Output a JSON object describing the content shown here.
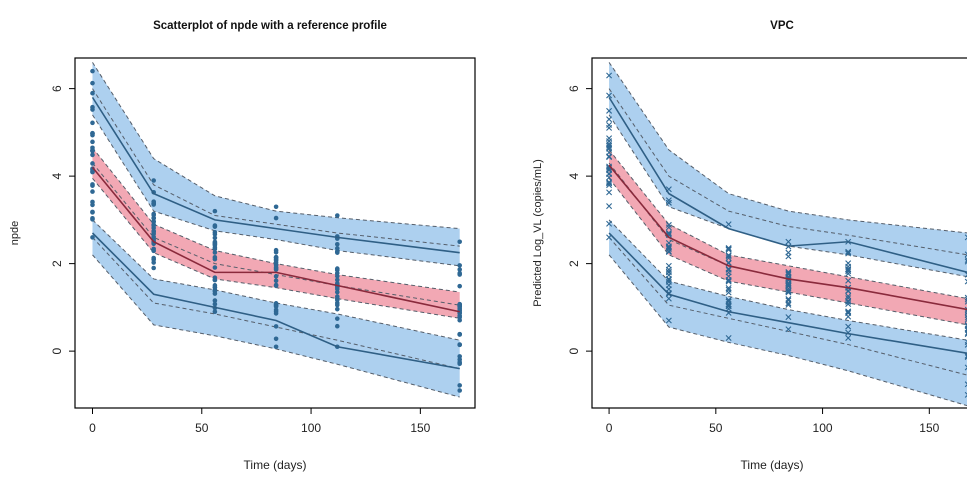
{
  "chart_data": [
    {
      "type": "scatter",
      "title": "Scatterplot of npde with a reference profile",
      "xlabel": "Time (days)",
      "ylabel": "npde",
      "xlim": [
        -8,
        175
      ],
      "ylim": [
        -1.3,
        6.7
      ],
      "xticks": [
        0,
        50,
        100,
        150
      ],
      "yticks": [
        0,
        2,
        4,
        6
      ],
      "marker": "dot",
      "x": [
        0,
        28,
        56,
        84,
        112,
        168
      ],
      "bands": {
        "upper": {
          "lo": [
            5.4,
            3.2,
            2.75,
            2.55,
            2.3,
            1.95
          ],
          "hi": [
            6.6,
            4.4,
            3.55,
            3.2,
            3.05,
            2.8
          ],
          "dashed": [
            6.0,
            3.8,
            3.1,
            2.9,
            2.7,
            2.4
          ],
          "line": [
            5.8,
            3.6,
            3.0,
            2.8,
            2.6,
            2.25
          ]
        },
        "median": {
          "lo": [
            3.95,
            2.25,
            1.65,
            1.45,
            1.2,
            0.75
          ],
          "hi": [
            4.65,
            2.9,
            2.3,
            2.0,
            1.75,
            1.35
          ],
          "dashed": [
            4.3,
            2.6,
            2.0,
            1.75,
            1.5,
            1.05
          ],
          "line": [
            4.2,
            2.5,
            1.8,
            1.8,
            1.5,
            0.9
          ]
        },
        "lower": {
          "lo": [
            2.2,
            0.6,
            0.35,
            0.05,
            -0.3,
            -1.05
          ],
          "hi": [
            3.0,
            1.65,
            1.4,
            1.1,
            0.85,
            0.25
          ],
          "dashed": [
            2.6,
            1.1,
            0.85,
            0.55,
            0.25,
            -0.4
          ],
          "line": [
            2.7,
            1.3,
            1.0,
            0.7,
            0.1,
            -0.4
          ]
        }
      },
      "points": [
        [
          0,
          2.6,
          6.4
        ],
        [
          28,
          1.9,
          3.9
        ],
        [
          56,
          0.9,
          3.2
        ],
        [
          84,
          0.1,
          3.3
        ],
        [
          112,
          0.1,
          3.1
        ],
        [
          168,
          -0.9,
          2.5
        ]
      ]
    },
    {
      "type": "scatter",
      "title": "VPC",
      "xlabel": "Time (days)",
      "ylabel": "Predicted Log_VL (copies/mL)",
      "xlim": [
        -8,
        170
      ],
      "ylim": [
        -1.3,
        6.7
      ],
      "xticks": [
        0,
        50,
        100,
        150
      ],
      "yticks": [
        0,
        2,
        4,
        6
      ],
      "marker": "x",
      "x": [
        0,
        28,
        56,
        84,
        112,
        168
      ],
      "bands": {
        "upper": {
          "lo": [
            5.4,
            3.3,
            2.8,
            2.4,
            2.2,
            1.7
          ],
          "hi": [
            6.6,
            4.6,
            3.6,
            3.2,
            3.0,
            2.7
          ],
          "dashed": [
            6.0,
            4.0,
            3.2,
            2.85,
            2.65,
            2.2
          ],
          "line": [
            5.8,
            3.6,
            2.8,
            2.4,
            2.5,
            1.8
          ]
        },
        "median": {
          "lo": [
            3.95,
            2.2,
            1.6,
            1.35,
            1.1,
            0.6
          ],
          "hi": [
            4.6,
            2.9,
            2.2,
            1.95,
            1.7,
            1.2
          ],
          "dashed": [
            4.3,
            2.55,
            1.95,
            1.65,
            1.45,
            0.95
          ],
          "line": [
            4.25,
            2.6,
            1.95,
            1.65,
            1.45,
            0.95
          ]
        },
        "lower": {
          "lo": [
            2.2,
            0.55,
            0.2,
            -0.1,
            -0.45,
            -1.25
          ],
          "hi": [
            3.0,
            1.6,
            1.25,
            0.95,
            0.7,
            0.25
          ],
          "dashed": [
            2.6,
            1.05,
            0.75,
            0.45,
            0.15,
            -0.55
          ],
          "line": [
            2.7,
            1.3,
            0.9,
            0.65,
            0.4,
            -0.05
          ]
        }
      },
      "points": [
        [
          0,
          2.6,
          6.3
        ],
        [
          28,
          0.7,
          3.7
        ],
        [
          56,
          0.3,
          2.9
        ],
        [
          84,
          0.5,
          2.5
        ],
        [
          112,
          0.3,
          2.5
        ],
        [
          168,
          -1.0,
          2.6
        ]
      ]
    }
  ],
  "colors": {
    "blue_band": "#a9cdee",
    "red_band": "#f1a3b0",
    "line": "#2f5f85",
    "median_line": "#8a2a3c",
    "dash": "#555e6a",
    "points": "#2f6894"
  }
}
